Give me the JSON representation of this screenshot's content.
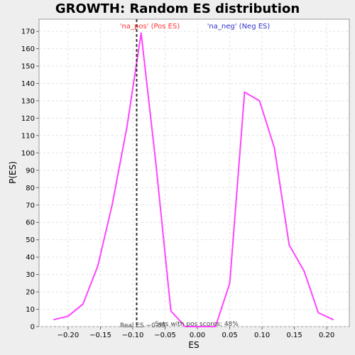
{
  "chart_data": {
    "type": "line",
    "title": "GROWTH: Random ES distribution",
    "xlabel": "ES",
    "ylabel": "P(ES)",
    "xlim": [
      -0.245,
      0.235
    ],
    "ylim": [
      0,
      177
    ],
    "x_ticks": [
      -0.2,
      -0.15,
      -0.1,
      -0.05,
      0.0,
      0.05,
      0.1,
      0.15,
      0.2
    ],
    "x_tick_labels": [
      "−0.20",
      "−0.15",
      "−0.10",
      "−0.05",
      "0.00",
      "0.05",
      "0.10",
      "0.15",
      "0.20"
    ],
    "y_ticks": [
      0,
      10,
      20,
      30,
      40,
      50,
      60,
      70,
      80,
      90,
      100,
      110,
      120,
      130,
      140,
      150,
      160,
      170
    ],
    "grid": true,
    "series": [
      {
        "color": "#ff44ff",
        "x": [
          -0.222,
          -0.2,
          -0.177,
          -0.154,
          -0.132,
          -0.109,
          -0.087,
          -0.064,
          -0.041,
          -0.019,
          0.004,
          0.028,
          0.05,
          0.073,
          0.096,
          0.119,
          0.142,
          0.165,
          0.187,
          0.21
        ],
        "y": [
          4,
          6,
          13,
          35,
          70,
          115,
          169,
          93,
          9,
          0,
          0,
          0,
          25,
          135,
          130,
          103,
          47,
          32,
          8,
          4
        ]
      }
    ],
    "real_es": {
      "x": -0.094,
      "label": "Real ES −0.09",
      "color": "#333333"
    },
    "annotations": {
      "na_pos": {
        "text": "'na_pos' (Pos ES)",
        "color": "#ff3333"
      },
      "na_neg": {
        "text": "'na_neg' (Neg ES)",
        "color": "#3333cc"
      },
      "pos_scores": {
        "text": "Sets with pos scores: 48%"
      }
    }
  }
}
